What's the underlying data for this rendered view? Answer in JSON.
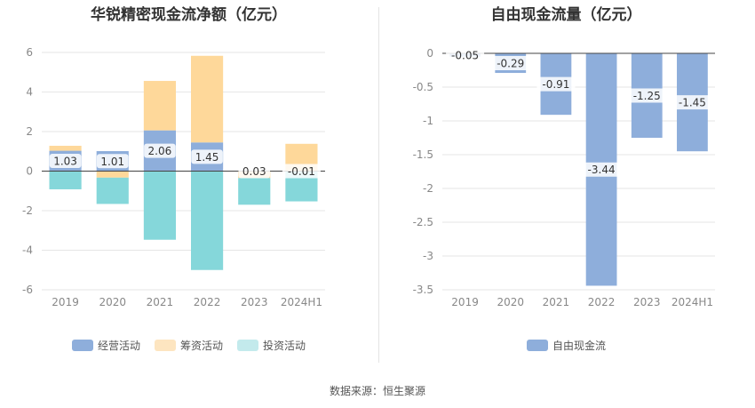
{
  "source_note": "数据来源：恒生聚源",
  "chart_data": [
    {
      "type": "bar",
      "title": "华锐精密现金流净额（亿元）",
      "categories": [
        "2019",
        "2020",
        "2021",
        "2022",
        "2023",
        "2024H1"
      ],
      "ylim": [
        -6,
        6
      ],
      "yticks": [
        -6,
        -4,
        -2,
        0,
        2,
        4,
        6
      ],
      "stacked": true,
      "grid": true,
      "legend_position": "bottom",
      "series": [
        {
          "name": "经营活动",
          "color": "#8eaedb",
          "values": [
            1.03,
            1.01,
            2.06,
            1.45,
            0.03,
            -0.01
          ]
        },
        {
          "name": "筹资活动",
          "color": "#fed89a",
          "values": [
            0.25,
            -0.33,
            2.5,
            4.38,
            -0.35,
            1.38
          ]
        },
        {
          "name": "投资活动",
          "color": "#85d7da",
          "values": [
            -0.92,
            -1.33,
            -3.47,
            -5.0,
            -1.35,
            -1.52
          ]
        }
      ],
      "data_labels": [
        "1.03",
        "1.01",
        "2.06",
        "1.45",
        "0.03",
        "-0.01"
      ]
    },
    {
      "type": "bar",
      "title": "自由现金流量（亿元）",
      "categories": [
        "2019",
        "2020",
        "2021",
        "2022",
        "2023",
        "2024H1"
      ],
      "ylim": [
        -3.5,
        0
      ],
      "yticks": [
        0,
        -0.5,
        -1,
        -1.5,
        -2,
        -2.5,
        -3,
        -3.5
      ],
      "grid": true,
      "legend_position": "bottom",
      "series": [
        {
          "name": "自由现金流",
          "color": "#8eaedb",
          "values": [
            -0.05,
            -0.29,
            -0.91,
            -3.44,
            -1.25,
            -1.45
          ]
        }
      ],
      "data_labels": [
        "-0.05",
        "-0.29",
        "-0.91",
        "-3.44",
        "-1.25",
        "-1.45"
      ]
    }
  ]
}
